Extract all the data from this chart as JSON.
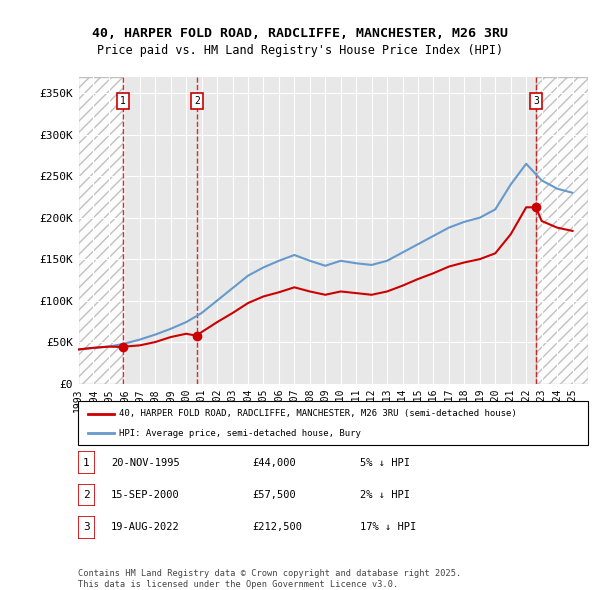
{
  "title_line1": "40, HARPER FOLD ROAD, RADCLIFFE, MANCHESTER, M26 3RU",
  "title_line2": "Price paid vs. HM Land Registry's House Price Index (HPI)",
  "ylabel": "",
  "ylim": [
    0,
    370000
  ],
  "yticks": [
    0,
    50000,
    100000,
    150000,
    200000,
    250000,
    300000,
    350000
  ],
  "ytick_labels": [
    "£0",
    "£50K",
    "£100K",
    "£150K",
    "£200K",
    "£250K",
    "£300K",
    "£350K"
  ],
  "background_color": "#ffffff",
  "plot_bg_color": "#e8e8e8",
  "hatch_color": "#cccccc",
  "grid_color": "#ffffff",
  "red_color": "#cc0000",
  "blue_color": "#6699cc",
  "sale_dates_num": [
    1995.89,
    2000.71,
    2022.63
  ],
  "sale_prices": [
    44000,
    57500,
    212500
  ],
  "sale_labels": [
    "1",
    "2",
    "3"
  ],
  "legend_line1": "40, HARPER FOLD ROAD, RADCLIFFE, MANCHESTER, M26 3RU (semi-detached house)",
  "legend_line2": "HPI: Average price, semi-detached house, Bury",
  "table_data": [
    [
      "1",
      "20-NOV-1995",
      "£44,000",
      "5% ↓ HPI"
    ],
    [
      "2",
      "15-SEP-2000",
      "£57,500",
      "2% ↓ HPI"
    ],
    [
      "3",
      "19-AUG-2022",
      "£212,500",
      "17% ↓ HPI"
    ]
  ],
  "footnote": "Contains HM Land Registry data © Crown copyright and database right 2025.\nThis data is licensed under the Open Government Licence v3.0.",
  "hpi_years": [
    1993,
    1994,
    1995,
    1996,
    1997,
    1998,
    1999,
    2000,
    2001,
    2002,
    2003,
    2004,
    2005,
    2006,
    2007,
    2008,
    2009,
    2010,
    2011,
    2012,
    2013,
    2014,
    2015,
    2016,
    2017,
    2018,
    2019,
    2020,
    2021,
    2022,
    2023,
    2024,
    2025
  ],
  "hpi_values": [
    41000,
    43000,
    44500,
    48000,
    53000,
    59000,
    66000,
    74000,
    85000,
    100000,
    115000,
    130000,
    140000,
    148000,
    155000,
    148000,
    142000,
    148000,
    145000,
    143000,
    148000,
    158000,
    168000,
    178000,
    188000,
    195000,
    200000,
    210000,
    240000,
    265000,
    245000,
    235000,
    230000
  ],
  "prop_years": [
    1993,
    1994,
    1995,
    1995.89,
    1996,
    1997,
    1998,
    1999,
    2000,
    2000.71,
    2001,
    2002,
    2003,
    2004,
    2005,
    2006,
    2007,
    2008,
    2009,
    2010,
    2011,
    2012,
    2013,
    2014,
    2015,
    2016,
    2017,
    2018,
    2019,
    2020,
    2021,
    2022,
    2022.63,
    2023,
    2024,
    2025
  ],
  "prop_values": [
    41000,
    43000,
    44500,
    44000,
    44500,
    46000,
    50000,
    56000,
    60000,
    57500,
    62000,
    74000,
    85000,
    97000,
    105000,
    110000,
    116000,
    111000,
    107000,
    111000,
    109000,
    107000,
    111000,
    118000,
    126000,
    133000,
    141000,
    146000,
    150000,
    157000,
    180000,
    212500,
    212500,
    196000,
    188000,
    184000
  ]
}
